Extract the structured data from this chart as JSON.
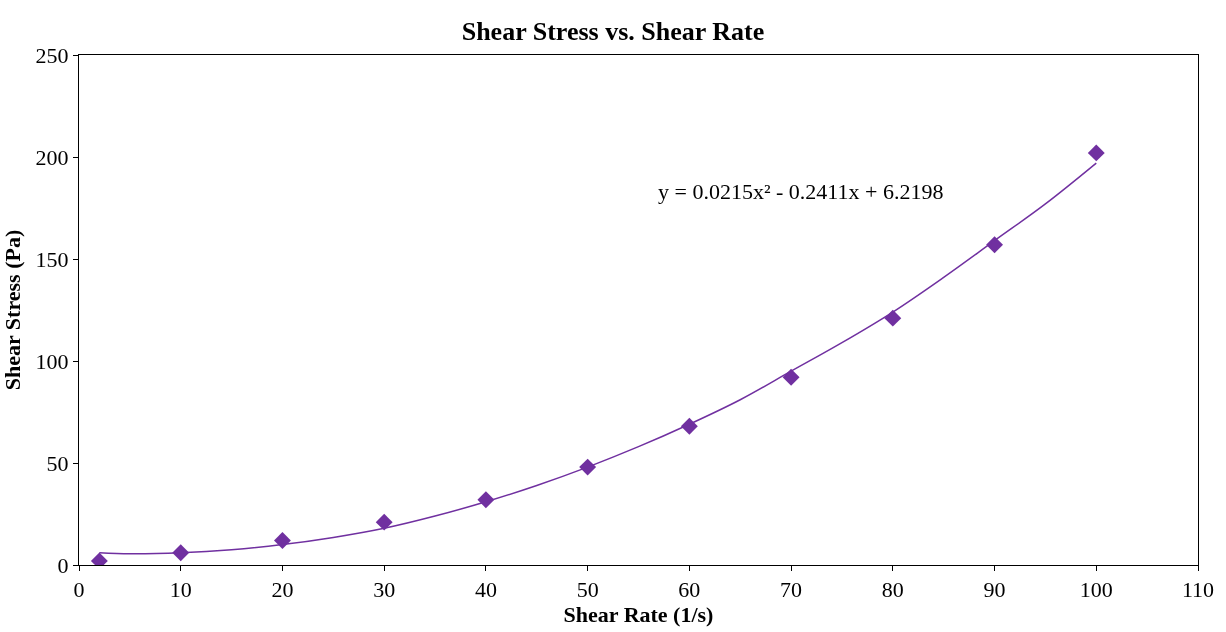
{
  "chart_data": {
    "type": "scatter",
    "title": "Shear Stress vs. Shear Rate",
    "xlabel": "Shear Rate (1/s)",
    "ylabel": "Shear Stress (Pa)",
    "x": [
      2,
      10,
      20,
      30,
      40,
      50,
      60,
      70,
      80,
      90,
      100
    ],
    "series": [
      {
        "color": "#7030a0",
        "marker": "diamond",
        "values": [
          2,
          6,
          12,
          21,
          32,
          48,
          68,
          92,
          121,
          157,
          202
        ]
      },
      {
        "type": "line",
        "color": "#7030a0",
        "marker": "none",
        "x": [
          2,
          5,
          10,
          15,
          20,
          25,
          30,
          35,
          40,
          45,
          50,
          55,
          60,
          65,
          70,
          75,
          80,
          85,
          90,
          95,
          100
        ],
        "values": [
          6,
          5.5,
          6,
          7.5,
          10,
          13.5,
          18,
          24,
          31,
          39,
          48,
          58,
          69,
          81,
          95,
          109,
          124,
          141,
          159,
          177,
          197
        ]
      }
    ],
    "annotations": [
      "y = 0.0215x² - 0.2411x + 6.2198"
    ],
    "xlim": [
      0,
      110
    ],
    "xticks": [
      0,
      10,
      20,
      30,
      40,
      50,
      60,
      70,
      80,
      90,
      100,
      110
    ],
    "ylim": [
      0,
      250
    ],
    "yticks": [
      0,
      50,
      100,
      150,
      200,
      250
    ]
  }
}
